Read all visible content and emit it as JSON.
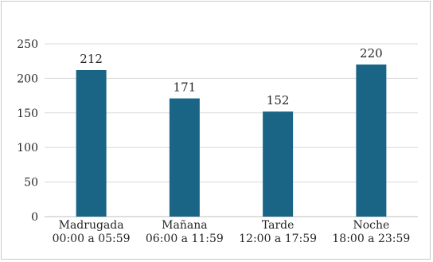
{
  "chart_data": {
    "type": "bar",
    "categories": [
      [
        "Madrugada",
        "00:00 a 05:59"
      ],
      [
        "Mañana",
        "06:00 a 11:59"
      ],
      [
        "Tarde",
        "12:00 a 17:59"
      ],
      [
        "Noche",
        "18:00 a 23:59"
      ]
    ],
    "values": [
      212,
      171,
      152,
      220
    ],
    "data_labels": [
      "212",
      "171",
      "152",
      "220"
    ],
    "yticks": [
      0,
      50,
      100,
      150,
      200,
      250
    ],
    "ylim": [
      0,
      250
    ],
    "title": "",
    "xlabel": "",
    "ylabel": "",
    "grid": true,
    "legend": "none",
    "colors": {
      "bar": "#1a6585",
      "grid": "#d9d9d9",
      "axis": "#bfbfbf"
    }
  }
}
